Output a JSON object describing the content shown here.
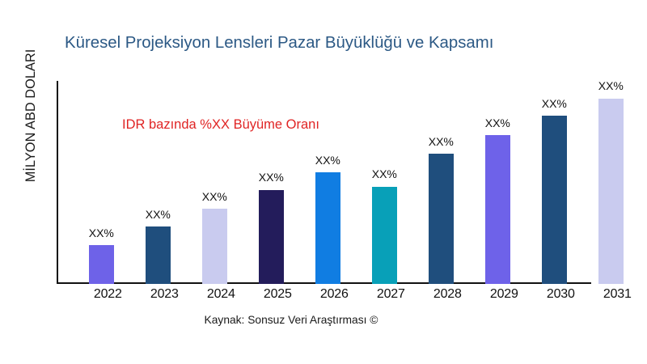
{
  "chart_data": {
    "type": "bar",
    "title": "Küresel Projeksiyon Lensleri Pazar Büyüklüğü ve Kapsamı",
    "ylabel": "MİLYON ABD DOLARI",
    "xlabel": "",
    "annotation": "IDR bazında %XX Büyüme Oranı",
    "source_note": "Kaynak: Sonsuz Veri Araştırması ©",
    "categories": [
      "2022",
      "2023",
      "2024",
      "2025",
      "2026",
      "2027",
      "2028",
      "2029",
      "2030",
      "2031"
    ],
    "series": [
      {
        "name": "Pazar Büyüklüğü",
        "values": [
          47.7,
          70.7,
          92.6,
          116.4,
          137.7,
          120.3,
          161.0,
          183.7,
          207.7,
          229.3
        ]
      }
    ],
    "value_unit": "px",
    "bar_value_labels": [
      "XX%",
      "XX%",
      "XX%",
      "XX%",
      "XX%",
      "XX%",
      "XX%",
      "XX%",
      "XX%",
      "XX%"
    ],
    "bar_colors": [
      "#6e62e8",
      "#1f4e7d",
      "#c9cbef",
      "#231c5b",
      "#107de2",
      "#08a0b8",
      "#1f4e7d",
      "#6e62e9",
      "#1f4e7d",
      "#c9cbef"
    ],
    "grid": false,
    "legend": false,
    "ylim_labeled": false,
    "colors": {
      "title": "#2c5985",
      "annotation": "#e02424",
      "axis": "#111111",
      "text": "#1a1a1a",
      "background": "#ffffff"
    }
  }
}
